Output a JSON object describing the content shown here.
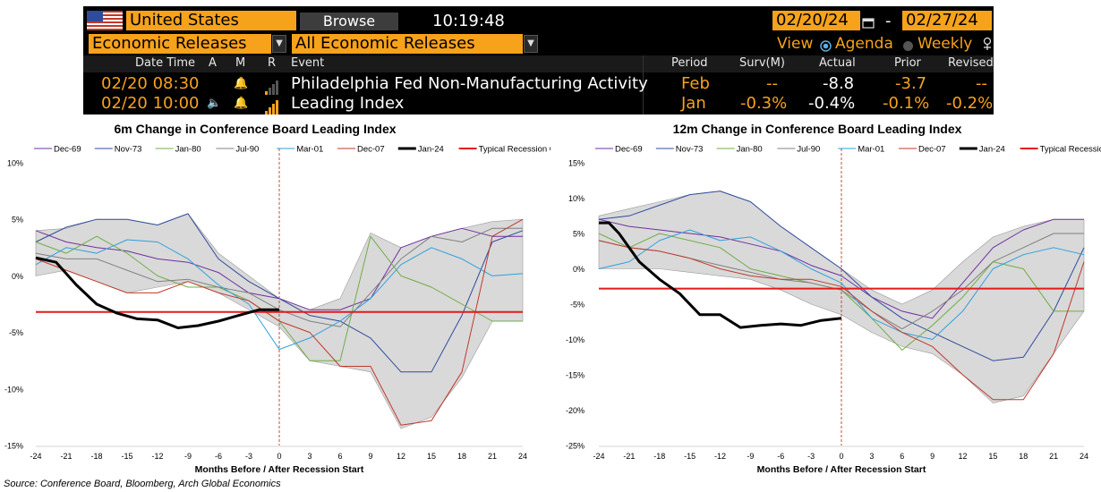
{
  "terminal": {
    "country": "United States",
    "browse_label": "Browse",
    "clock": "10:19:48",
    "date_from": "02/20/24",
    "date_sep": "-",
    "date_to": "02/27/24",
    "category": "Economic Releases",
    "subcategory": "All Economic Releases",
    "view_label": "View",
    "agenda_label": "Agenda",
    "weekly_label": "Weekly",
    "columns": {
      "datetime": "Date Time",
      "a": "A",
      "m": "M",
      "r": "R",
      "event": "Event",
      "period": "Period",
      "surv": "Surv(M)",
      "actual": "Actual",
      "prior": "Prior",
      "revised": "Revised"
    },
    "rows": [
      {
        "datetime": "02/20 08:30",
        "event": "Philadelphia Fed Non-Manufacturing Activity",
        "period": "Feb",
        "surv": "--",
        "actual": "-8.8",
        "prior": "-3.7",
        "revised": "--",
        "relevance": 1
      },
      {
        "datetime": "02/20 10:00",
        "event": "Leading Index",
        "period": "Jan",
        "surv": "-0.3%",
        "actual": "-0.4%",
        "prior": "-0.1%",
        "revised": "-0.2%",
        "relevance": 4
      }
    ],
    "colors": {
      "accent": "#f7a21b",
      "background": "#000000"
    }
  },
  "chart_data": [
    {
      "type": "line",
      "title": "6m Change in Conference Board Leading Index",
      "xlabel": "Months Before / After Recession Start",
      "ylabel": "",
      "xlim": [
        -24,
        24
      ],
      "xticks": [
        -24,
        -21,
        -18,
        -15,
        -12,
        -9,
        -6,
        -3,
        0,
        3,
        6,
        9,
        12,
        15,
        18,
        21,
        24
      ],
      "ylim": [
        -15,
        10
      ],
      "yticks": [
        {
          "v": 10,
          "label": "10%"
        },
        {
          "v": 5,
          "label": "5%"
        },
        {
          "v": 0,
          "label": "0%"
        },
        {
          "v": -5,
          "label": "-5%"
        },
        {
          "v": -10,
          "label": "-10%"
        },
        {
          "v": -15,
          "label": "-15%"
        }
      ],
      "legend_position": "top",
      "grid": false,
      "recession_onset_level": -3.2,
      "vertical_marker_x": 0,
      "range_band": {
        "x": [
          -24,
          -21,
          -18,
          -15,
          -12,
          -9,
          -6,
          -3,
          0,
          3,
          6,
          9,
          12,
          15,
          18,
          21,
          24
        ],
        "upper": [
          4,
          4.2,
          5,
          5,
          4.5,
          5.5,
          2,
          0,
          -2,
          -3,
          -2,
          3.8,
          2.5,
          3.5,
          4.2,
          4.8,
          5
        ],
        "lower": [
          0,
          0.5,
          -0.5,
          -1.5,
          -1,
          -0.5,
          -1.5,
          -3,
          -4.5,
          -7.5,
          -8,
          -8.5,
          -13.5,
          -12.5,
          -9,
          -4,
          -4
        ]
      },
      "series": [
        {
          "name": "Dec-69",
          "color": "#7030a0",
          "width": 1,
          "x": [
            -24,
            -21,
            -18,
            -15,
            -12,
            -9,
            -6,
            -3,
            0,
            3,
            6,
            9,
            12,
            15,
            18,
            21,
            24
          ],
          "values": [
            4,
            3,
            2.5,
            2.2,
            1.5,
            1.2,
            0.3,
            -1.5,
            -2,
            -3,
            -3,
            -2,
            2.5,
            3.5,
            4.2,
            3.5,
            3.5
          ]
        },
        {
          "name": "Nov-73",
          "color": "#2f4b9c",
          "width": 1,
          "x": [
            -24,
            -21,
            -18,
            -15,
            -12,
            -9,
            -6,
            -3,
            0,
            3,
            6,
            9,
            12,
            15,
            18,
            21,
            24
          ],
          "values": [
            3,
            4.3,
            5,
            5,
            4.5,
            5.5,
            1.5,
            -0.5,
            -2,
            -3.5,
            -4,
            -5.5,
            -8.5,
            -8.5,
            -3.5,
            3,
            4
          ]
        },
        {
          "name": "Jan-80",
          "color": "#70ad47",
          "width": 1,
          "x": [
            -24,
            -21,
            -18,
            -15,
            -12,
            -9,
            -6,
            -3,
            0,
            3,
            6,
            9,
            12,
            15,
            18,
            21,
            24
          ],
          "values": [
            3,
            2,
            3.5,
            2,
            0,
            -1,
            -1,
            -2.2,
            -4,
            -7.5,
            -7.5,
            3.5,
            0,
            -1,
            -2.5,
            -4,
            -4
          ]
        },
        {
          "name": "Jul-90",
          "color": "#808080",
          "width": 1,
          "x": [
            -24,
            -21,
            -18,
            -15,
            -12,
            -9,
            -6,
            -3,
            0,
            3,
            6,
            9,
            12,
            15,
            18,
            21,
            24
          ],
          "values": [
            2,
            1.5,
            1.5,
            0.5,
            -0.5,
            -0.3,
            -1,
            -1.5,
            -3,
            -4,
            -4.5,
            -1.5,
            1.5,
            3.5,
            3,
            4.2,
            4.2
          ]
        },
        {
          "name": "Mar-01",
          "color": "#2ea0dc",
          "width": 1,
          "x": [
            -24,
            -21,
            -18,
            -15,
            -12,
            -9,
            -6,
            -3,
            0,
            3,
            6,
            9,
            12,
            15,
            18,
            21,
            24
          ],
          "values": [
            1,
            2.5,
            2,
            3.2,
            3,
            1.5,
            -0.8,
            -2.5,
            -6.5,
            -5.5,
            -4,
            -2,
            1,
            2.5,
            1.5,
            0,
            0.2
          ]
        },
        {
          "name": "Dec-07",
          "color": "#c0392b",
          "width": 1,
          "x": [
            -24,
            -21,
            -18,
            -15,
            -12,
            -9,
            -6,
            -3,
            0,
            3,
            6,
            9,
            12,
            15,
            18,
            21,
            24
          ],
          "values": [
            1.5,
            0.5,
            -0.5,
            -1.5,
            -1.5,
            -0.5,
            -1.5,
            -2.2,
            -4,
            -5,
            -8,
            -8,
            -13.2,
            -12.8,
            -8.5,
            3.5,
            5
          ]
        },
        {
          "name": "Jan-24",
          "color": "#000000",
          "width": 3,
          "x": [
            -24,
            -22,
            -20,
            -18,
            -16,
            -14,
            -12,
            -10,
            -8,
            -6,
            -4,
            -2,
            0
          ],
          "values": [
            1.6,
            1.2,
            -0.8,
            -2.5,
            -3.3,
            -3.8,
            -3.9,
            -4.6,
            -4.4,
            -4,
            -3.5,
            -3,
            -3
          ]
        },
        {
          "name": "Typical Recession Onset",
          "color": "#e41a1c",
          "width": 2,
          "x": [
            -24,
            24
          ],
          "values": [
            -3.2,
            -3.2
          ]
        }
      ]
    },
    {
      "type": "line",
      "title": "12m Change in Conference Board Leading Index",
      "xlabel": "Months Before / After Recession Start",
      "ylabel": "",
      "xlim": [
        -24,
        24
      ],
      "xticks": [
        -24,
        -21,
        -18,
        -15,
        -12,
        -9,
        -6,
        -3,
        0,
        3,
        6,
        9,
        12,
        15,
        18,
        21,
        24
      ],
      "ylim": [
        -25,
        15
      ],
      "yticks": [
        {
          "v": 15,
          "label": "15%"
        },
        {
          "v": 10,
          "label": "10%"
        },
        {
          "v": 5,
          "label": "5%"
        },
        {
          "v": 0,
          "label": "0%"
        },
        {
          "v": -5,
          "label": "-5%"
        },
        {
          "v": -10,
          "label": "-10%"
        },
        {
          "v": -15,
          "label": "-15%"
        },
        {
          "v": -20,
          "label": "-20%"
        },
        {
          "v": -25,
          "label": "-25%"
        }
      ],
      "legend_position": "top",
      "grid": false,
      "recession_onset_level": -2.8,
      "vertical_marker_x": 0,
      "range_band": {
        "x": [
          -24,
          -21,
          -18,
          -15,
          -12,
          -9,
          -6,
          -3,
          0,
          3,
          6,
          9,
          12,
          15,
          18,
          21,
          24
        ],
        "upper": [
          7.5,
          8.5,
          9.5,
          10.5,
          11,
          9.5,
          6,
          3,
          0,
          -3,
          -5,
          -3,
          1,
          4.5,
          6,
          7,
          7
        ],
        "lower": [
          0,
          0,
          0,
          -0.5,
          -1,
          -1.5,
          -3,
          -5,
          -6.5,
          -9,
          -11,
          -12,
          -15,
          -19,
          -18,
          -12,
          -6
        ]
      },
      "series": [
        {
          "name": "Dec-69",
          "color": "#7030a0",
          "width": 1,
          "x": [
            -24,
            -21,
            -18,
            -15,
            -12,
            -9,
            -6,
            -3,
            0,
            3,
            6,
            9,
            12,
            15,
            18,
            21,
            24
          ],
          "values": [
            7,
            6,
            5.5,
            5,
            4.5,
            3.5,
            2.5,
            0.5,
            -1,
            -4,
            -6,
            -7,
            -2,
            3,
            5.5,
            7,
            7
          ]
        },
        {
          "name": "Nov-73",
          "color": "#2f4b9c",
          "width": 1,
          "x": [
            -24,
            -21,
            -18,
            -15,
            -12,
            -9,
            -6,
            -3,
            0,
            3,
            6,
            9,
            12,
            15,
            18,
            21,
            24
          ],
          "values": [
            7,
            7.5,
            9,
            10.5,
            11,
            9.5,
            6,
            3,
            0,
            -4,
            -7,
            -9,
            -11,
            -13,
            -12.5,
            -6,
            3
          ]
        },
        {
          "name": "Jan-80",
          "color": "#70ad47",
          "width": 1,
          "x": [
            -24,
            -21,
            -18,
            -15,
            -12,
            -9,
            -6,
            -3,
            0,
            3,
            6,
            9,
            12,
            15,
            18,
            21,
            24
          ],
          "values": [
            5,
            3,
            5,
            4,
            3,
            0,
            -1,
            -2,
            -3,
            -7,
            -11.5,
            -8,
            -4,
            1,
            0,
            -6,
            -6
          ]
        },
        {
          "name": "Jul-90",
          "color": "#808080",
          "width": 1,
          "x": [
            -24,
            -21,
            -18,
            -15,
            -12,
            -9,
            -6,
            -3,
            0,
            3,
            6,
            9,
            12,
            15,
            18,
            21,
            24
          ],
          "values": [
            4,
            3,
            2.5,
            1.5,
            0.5,
            -0.5,
            -1.5,
            -2,
            -3,
            -6,
            -8.5,
            -6,
            -3,
            1,
            3,
            5,
            5
          ]
        },
        {
          "name": "Mar-01",
          "color": "#2ea0dc",
          "width": 1,
          "x": [
            -24,
            -21,
            -18,
            -15,
            -12,
            -9,
            -6,
            -3,
            0,
            3,
            6,
            9,
            12,
            15,
            18,
            21,
            24
          ],
          "values": [
            0,
            1,
            4,
            5.5,
            4,
            4.5,
            2.5,
            0,
            -2,
            -7,
            -9,
            -10,
            -6,
            0,
            2,
            3,
            2
          ]
        },
        {
          "name": "Dec-07",
          "color": "#c0392b",
          "width": 1,
          "x": [
            -24,
            -21,
            -18,
            -15,
            -12,
            -9,
            -6,
            -3,
            0,
            3,
            6,
            9,
            12,
            15,
            18,
            21,
            24
          ],
          "values": [
            4,
            3,
            2.5,
            1.5,
            0,
            -1,
            -1.5,
            -1.5,
            -2.5,
            -6,
            -9,
            -11,
            -15,
            -18.5,
            -18.5,
            -12,
            1
          ]
        },
        {
          "name": "Jan-24",
          "color": "#000000",
          "width": 3,
          "x": [
            -24,
            -23,
            -22,
            -20,
            -18,
            -16,
            -14,
            -12,
            -10,
            -8,
            -6,
            -4,
            -2,
            0
          ],
          "values": [
            6.5,
            6.5,
            5,
            1,
            -1.5,
            -3.5,
            -6.5,
            -6.5,
            -8.3,
            -8,
            -7.8,
            -8,
            -7.3,
            -7
          ]
        },
        {
          "name": "Typical Recession Onset",
          "color": "#e41a1c",
          "width": 2,
          "x": [
            -24,
            24
          ],
          "values": [
            -2.8,
            -2.8
          ]
        }
      ]
    }
  ],
  "source": "Source: Conference Board, Bloomberg, Arch Global Economics"
}
